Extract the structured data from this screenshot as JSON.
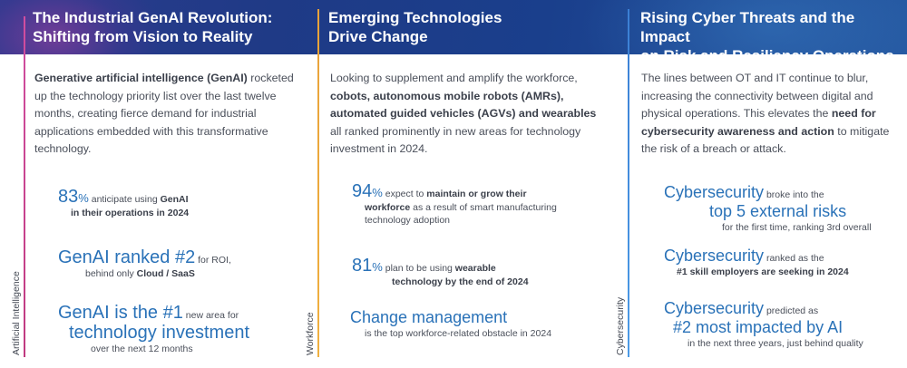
{
  "columns": [
    {
      "title_line1": "The Industrial GenAI Revolution:",
      "title_line2": "Shifting from Vision to Reality",
      "side_label": "Artificial Intelligence",
      "intro_bold": "Generative artificial intelligence (GenAI)",
      "intro_rest": " rocketed up the technology priority list over the last twelve months, creating fierce demand for industrial applications embedded with this transformative technology.",
      "stats": {
        "s1_big": "83",
        "s1_pct": "%",
        "s1_text": " anticipate using ",
        "s1_bold": "GenAI",
        "s1_line2": "in their operations in 2024",
        "s2_big": "GenAI ranked #2",
        "s2_text": " for ROI,",
        "s2_line2_text": "behind only ",
        "s2_line2_bold": "Cloud / SaaS",
        "s3_big": "GenAI is the #1",
        "s3_text": " new area for",
        "s3_line2": "technology investment",
        "s3_line3": "over the next 12 months"
      }
    },
    {
      "title_line1": "Emerging Technologies",
      "title_line2": "Drive Change",
      "side_label": "Workforce",
      "intro_a": "Looking to supplement and amplify the workforce, ",
      "intro_bold1": "cobots, autonomous mobile robots (AMRs), automated guided vehicles (AGVs) and wearables",
      "intro_b": " all ranked prominently in new areas for technology investment in 2024.",
      "stats": {
        "s1_big": "94",
        "s1_pct": "%",
        "s1_text": " expect to ",
        "s1_bold": "maintain or grow their",
        "s1_line2_bold": "workforce",
        "s1_line2_text": " as a result of smart manufacturing",
        "s1_line3": "technology adoption",
        "s2_big": "81",
        "s2_pct": "%",
        "s2_text": " plan to be using ",
        "s2_bold": "wearable",
        "s2_line2": "technology by the end of 2024",
        "s3_big": "Change management",
        "s3_line2": "is the top workforce-related obstacle in 2024"
      }
    },
    {
      "title_line1": "Rising Cyber Threats and the Impact",
      "title_line2": "on Risk and Resiliency Operations",
      "side_label": "Cybersecurity",
      "intro_a": "The lines between OT and IT continue to blur, increasing the connectivity between digital and physical operations. This elevates the ",
      "intro_bold1": "need for cybersecurity awareness and action",
      "intro_b": " to mitigate the risk of a breach or attack.",
      "stats": {
        "s1_big": "Cybersecurity",
        "s1_text": " broke into the",
        "s1_line2": "top 5 external risks",
        "s1_line3": "for the first time, ranking 3rd overall",
        "s2_big": "Cybersecurity",
        "s2_text": " ranked as the",
        "s2_line2": "#1 skill employers are seeking in 2024",
        "s3_big": "Cybersecurity",
        "s3_text": " predicted as",
        "s3_line2": "#2 most impacted by AI",
        "s3_line3": "in the next three years, just behind quality"
      }
    }
  ]
}
